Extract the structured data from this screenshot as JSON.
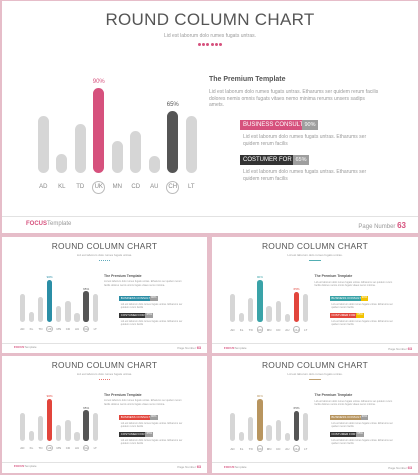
{
  "slides": [
    {
      "title": "ROUND COLUMN CHART",
      "subtitle": "Lid est laborum dolo rumes fugats untras.",
      "accent": "#d6517d",
      "chart_data": {
        "type": "bar",
        "categories": [
          "AD",
          "KL",
          "TD",
          "UK",
          "MN",
          "CD",
          "AU",
          "CH",
          "LT"
        ],
        "values": [
          60,
          20,
          52,
          90,
          34,
          44,
          18,
          65,
          60
        ],
        "highlights": [
          {
            "index": 3,
            "label": "90%",
            "color": "#d6517d"
          },
          {
            "index": 7,
            "label": "65%",
            "color": "#555555"
          }
        ],
        "circled": [
          3,
          7
        ]
      },
      "premium_title": "The Premium Template",
      "premium_body": "Lid est laborum dolo rumes fugats untras. Etharums ser quidem rerum facilis dolores nemis omnis fugats vitaes nemo minima rerums unsers sadips amets.",
      "badge1": {
        "label": "BUSINESS CONSULT",
        "pct": "90%",
        "desc": "Lid est laborum dolo rumes fugats untras. Etharums ser quidem rerum facilis"
      },
      "badge2": {
        "label": "COSTUMER FOR",
        "pct": "65%",
        "desc": "Lid est laborum dolo rumes fugats untras. Etharums ser quidem rerum facilis"
      },
      "footer_brand": "FOCUS",
      "footer_suffix": "Template",
      "page_label": "Page Number",
      "page_number": "63"
    },
    {
      "title": "ROUND COLUMN CHART",
      "subtitle": "Lid est laborum dolo rumes fugats untras.",
      "accent": "#2b8ea6",
      "chart_data": {
        "type": "bar",
        "categories": [
          "AD",
          "KL",
          "TD",
          "UK",
          "MN",
          "CD",
          "AU",
          "CH",
          "LT"
        ],
        "values": [
          60,
          20,
          52,
          90,
          34,
          44,
          18,
          65,
          60
        ],
        "highlights": [
          {
            "index": 3,
            "label": "90%",
            "color": "#2b8ea6"
          },
          {
            "index": 7,
            "label": "65%",
            "color": "#555555"
          }
        ],
        "circled": [
          3,
          7
        ]
      },
      "premium_title": "The Premium Template",
      "premium_body": "Lid est laborum dolo rumes fugats untras. Etharums ser quidem rerum facilis dolores nemis omnis fugats vitaes nemo minima.",
      "badge1": {
        "label": "BUSINESS CONSULT",
        "pct": "90%",
        "desc": "Lid est laborum dolo rumes fugats untras. Etharums ser quidem rerum facilis"
      },
      "badge2": {
        "label": "COSTUMER FOR",
        "pct": "65%",
        "desc": "Lid est laborum dolo rumes fugats untras. Etharums ser quidem rerum facilis"
      },
      "footer_brand": "FOCUS",
      "footer_suffix": "Template",
      "page_label": "Page Number",
      "page_number": "63"
    },
    {
      "title": "ROUND COLUMN CHART",
      "subtitle": "Lid est laborum dolo rumes fugats untras.",
      "accent": "#3aa3a8",
      "chart_data": {
        "type": "bar",
        "categories": [
          "AD",
          "KL",
          "TD",
          "UK",
          "MN",
          "CD",
          "AU",
          "CH",
          "LT"
        ],
        "values": [
          60,
          20,
          52,
          90,
          34,
          44,
          18,
          65,
          60
        ],
        "highlights": [
          {
            "index": 3,
            "label": "90%",
            "color": "#3aa3a8"
          },
          {
            "index": 7,
            "label": "65%",
            "color": "#e2453c"
          }
        ],
        "circled": [
          3,
          7
        ]
      },
      "premium_title": "The Premium Template",
      "premium_body": "Lid est laborum dolo rumes fugats untras. Etharums ser quidem rerum facilis dolores nemis omnis fugats vitaes nemo minima.",
      "badge1": {
        "label": "BUSINESS CONSULT",
        "pct": "90%",
        "desc": "Lid est laborum dolo rumes fugats untras. Etharums ser quidem rerum facilis",
        "pct_color": "#f2c200"
      },
      "badge2": {
        "label": "COSTUMER FOR",
        "pct": "65%",
        "desc": "Lid est laborum dolo rumes fugats untras. Etharums ser quidem rerum facilis",
        "color": "#e2453c",
        "pct_color": "#f2c200"
      },
      "footer_brand": "FOCUS",
      "footer_suffix": "Template",
      "page_label": "Page Number",
      "page_number": "63"
    },
    {
      "title": "ROUND COLUMN CHART",
      "subtitle": "Lid est laborum dolo rumes fugats untras.",
      "accent": "#e2453c",
      "chart_data": {
        "type": "bar",
        "categories": [
          "AD",
          "KL",
          "TD",
          "UK",
          "MN",
          "CD",
          "AU",
          "CH",
          "LT"
        ],
        "values": [
          60,
          20,
          52,
          90,
          34,
          44,
          18,
          65,
          60
        ],
        "highlights": [
          {
            "index": 3,
            "label": "90%",
            "color": "#e2453c"
          },
          {
            "index": 7,
            "label": "65%",
            "color": "#555555"
          }
        ],
        "circled": [
          3,
          7
        ]
      },
      "premium_title": "The Premium Template",
      "premium_body": "Lid est laborum dolo rumes fugats untras. Etharums ser quidem rerum facilis dolores nemis omnis fugats vitaes nemo minima.",
      "badge1": {
        "label": "BUSINESS CONSULT",
        "pct": "90%",
        "desc": "Lid est laborum dolo rumes fugats untras. Etharums ser quidem rerum facilis"
      },
      "badge2": {
        "label": "COSTUMER FOR",
        "pct": "65%",
        "desc": "Lid est laborum dolo rumes fugats untras. Etharums ser quidem rerum facilis"
      },
      "footer_brand": "FOCUS",
      "footer_suffix": "Template",
      "page_label": "Page Number",
      "page_number": "63"
    },
    {
      "title": "ROUND COLUMN CHART",
      "subtitle": "Lid est laborum dolo rumes fugats untras.",
      "accent": "#b8955f",
      "chart_data": {
        "type": "bar",
        "categories": [
          "AD",
          "KL",
          "TD",
          "UK",
          "MN",
          "CD",
          "AU",
          "CH",
          "LT"
        ],
        "values": [
          60,
          20,
          52,
          90,
          34,
          44,
          18,
          65,
          60
        ],
        "highlights": [
          {
            "index": 3,
            "label": "90%",
            "color": "#b8955f"
          },
          {
            "index": 7,
            "label": "65%",
            "color": "#555555"
          }
        ],
        "circled": [
          3,
          7
        ]
      },
      "premium_title": "The Premium Template",
      "premium_body": "Lid est laborum dolo rumes fugats untras. Etharums ser quidem rerum facilis dolores nemis omnis fugats vitaes nemo minima.",
      "badge1": {
        "label": "BUSINESS CONSULT",
        "pct": "90%",
        "desc": "Lid est laborum dolo rumes fugats untras. Etharums ser quidem rerum facilis"
      },
      "badge2": {
        "label": "COSTUMER FOR",
        "pct": "65%",
        "desc": "Lid est laborum dolo rumes fugats untras. Etharums ser quidem rerum facilis"
      },
      "footer_brand": "FOCUS",
      "footer_suffix": "Template",
      "page_label": "Page Number",
      "page_number": "63"
    }
  ]
}
